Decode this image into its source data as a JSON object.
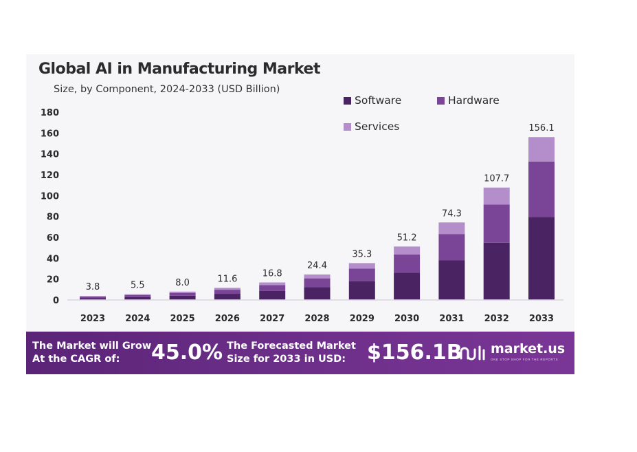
{
  "header": {
    "title": "Global AI in Manufacturing Market",
    "subtitle": "Size, by Component, 2024-2033 (USD Billion)"
  },
  "chart_data": {
    "type": "bar",
    "stacked": true,
    "categories": [
      "2023",
      "2024",
      "2025",
      "2026",
      "2027",
      "2028",
      "2029",
      "2030",
      "2031",
      "2032",
      "2033"
    ],
    "series": [
      {
        "name": "Software",
        "color": "#4a2462",
        "values": [
          1.9,
          2.8,
          4.1,
          5.9,
          8.6,
          12.4,
          18.0,
          26.1,
          37.9,
          54.9,
          79.6
        ]
      },
      {
        "name": "Hardware",
        "color": "#7b4597",
        "values": [
          1.3,
          1.9,
          2.7,
          3.9,
          5.7,
          8.3,
          12.0,
          17.4,
          25.3,
          36.6,
          53.1
        ]
      },
      {
        "name": "Services",
        "color": "#b48ecb",
        "values": [
          0.6,
          0.8,
          1.2,
          1.8,
          2.5,
          3.7,
          5.3,
          7.7,
          11.1,
          16.2,
          23.4
        ]
      }
    ],
    "totals": [
      3.8,
      5.5,
      8.0,
      11.6,
      16.8,
      24.4,
      35.3,
      51.2,
      74.3,
      107.7,
      156.1
    ],
    "total_labels": [
      "3.8",
      "5.5",
      "8.0",
      "11.6",
      "16.8",
      "24.4",
      "35.3",
      "51.2",
      "74.3",
      "107.7",
      "156.1"
    ],
    "yticks": [
      "0",
      "20",
      "40",
      "60",
      "80",
      "100",
      "120",
      "140",
      "160",
      "180"
    ],
    "ylim": [
      0,
      180
    ],
    "grid": false,
    "legend_position": "top-right"
  },
  "footer": {
    "cagr_text_line1": "The Market will Grow",
    "cagr_text_line2": "At the CAGR of:",
    "cagr_value": "45.0%",
    "forecast_text_line1": "The Forecasted Market",
    "forecast_text_line2": "Size for 2033 in USD:",
    "forecast_value": "$156.1B",
    "brand_name": "market.us",
    "brand_tagline": "ONE STOP SHOP FOR THE REPORTS"
  }
}
